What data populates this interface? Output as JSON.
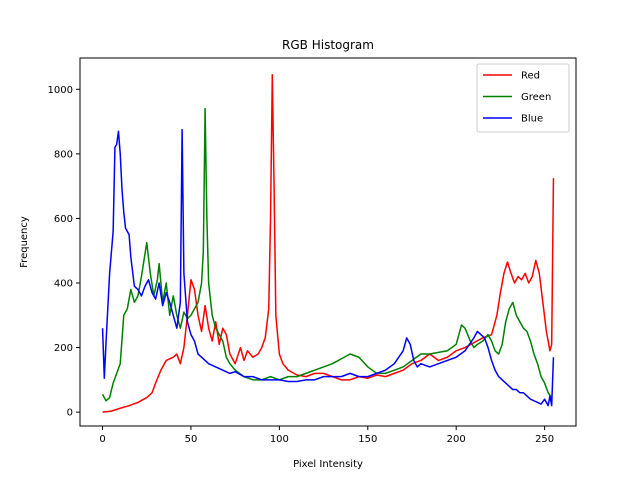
{
  "chart_data": {
    "type": "line",
    "title": "RGB Histogram",
    "xlabel": "Pixel Intensity",
    "ylabel": "Frequency",
    "xlim": [
      -12.75,
      267.75
    ],
    "ylim": [
      -43,
      1097
    ],
    "xticks": [
      0,
      50,
      100,
      150,
      200,
      250
    ],
    "yticks": [
      0,
      200,
      400,
      600,
      800,
      1000
    ],
    "grid": false,
    "legend": "upper-right",
    "series": [
      {
        "name": "Red",
        "color": "#ff0000",
        "points": [
          [
            0,
            0
          ],
          [
            5,
            3
          ],
          [
            10,
            12
          ],
          [
            15,
            20
          ],
          [
            20,
            30
          ],
          [
            25,
            45
          ],
          [
            28,
            60
          ],
          [
            30,
            90
          ],
          [
            33,
            130
          ],
          [
            36,
            160
          ],
          [
            40,
            170
          ],
          [
            42,
            180
          ],
          [
            44,
            150
          ],
          [
            46,
            200
          ],
          [
            48,
            300
          ],
          [
            50,
            410
          ],
          [
            52,
            380
          ],
          [
            54,
            300
          ],
          [
            56,
            250
          ],
          [
            58,
            330
          ],
          [
            60,
            260
          ],
          [
            62,
            220
          ],
          [
            64,
            280
          ],
          [
            66,
            210
          ],
          [
            68,
            260
          ],
          [
            70,
            240
          ],
          [
            72,
            180
          ],
          [
            75,
            150
          ],
          [
            78,
            200
          ],
          [
            80,
            160
          ],
          [
            82,
            190
          ],
          [
            85,
            170
          ],
          [
            88,
            180
          ],
          [
            90,
            200
          ],
          [
            92,
            230
          ],
          [
            94,
            320
          ],
          [
            95,
            600
          ],
          [
            96,
            1045
          ],
          [
            97,
            700
          ],
          [
            98,
            300
          ],
          [
            100,
            180
          ],
          [
            102,
            150
          ],
          [
            105,
            130
          ],
          [
            110,
            115
          ],
          [
            115,
            110
          ],
          [
            120,
            120
          ],
          [
            125,
            120
          ],
          [
            130,
            110
          ],
          [
            135,
            100
          ],
          [
            140,
            100
          ],
          [
            145,
            110
          ],
          [
            150,
            105
          ],
          [
            155,
            115
          ],
          [
            160,
            110
          ],
          [
            165,
            120
          ],
          [
            170,
            130
          ],
          [
            175,
            150
          ],
          [
            180,
            160
          ],
          [
            185,
            180
          ],
          [
            190,
            160
          ],
          [
            195,
            170
          ],
          [
            200,
            190
          ],
          [
            205,
            200
          ],
          [
            210,
            215
          ],
          [
            215,
            230
          ],
          [
            220,
            240
          ],
          [
            223,
            300
          ],
          [
            225,
            370
          ],
          [
            227,
            430
          ],
          [
            229,
            465
          ],
          [
            231,
            430
          ],
          [
            233,
            400
          ],
          [
            235,
            420
          ],
          [
            237,
            410
          ],
          [
            239,
            430
          ],
          [
            241,
            400
          ],
          [
            243,
            420
          ],
          [
            245,
            470
          ],
          [
            247,
            430
          ],
          [
            249,
            340
          ],
          [
            251,
            250
          ],
          [
            253,
            190
          ],
          [
            254,
            210
          ],
          [
            255,
            725
          ]
        ]
      },
      {
        "name": "Green",
        "color": "#008000",
        "points": [
          [
            0,
            55
          ],
          [
            2,
            35
          ],
          [
            4,
            45
          ],
          [
            6,
            90
          ],
          [
            8,
            120
          ],
          [
            10,
            150
          ],
          [
            12,
            300
          ],
          [
            14,
            320
          ],
          [
            16,
            380
          ],
          [
            18,
            340
          ],
          [
            20,
            360
          ],
          [
            22,
            420
          ],
          [
            24,
            490
          ],
          [
            25,
            525
          ],
          [
            27,
            430
          ],
          [
            29,
            360
          ],
          [
            31,
            410
          ],
          [
            32,
            460
          ],
          [
            34,
            340
          ],
          [
            36,
            400
          ],
          [
            38,
            300
          ],
          [
            40,
            360
          ],
          [
            42,
            300
          ],
          [
            44,
            260
          ],
          [
            46,
            310
          ],
          [
            48,
            290
          ],
          [
            50,
            300
          ],
          [
            52,
            320
          ],
          [
            54,
            340
          ],
          [
            56,
            400
          ],
          [
            57,
            500
          ],
          [
            58,
            940
          ],
          [
            59,
            600
          ],
          [
            60,
            400
          ],
          [
            62,
            300
          ],
          [
            64,
            260
          ],
          [
            66,
            240
          ],
          [
            68,
            220
          ],
          [
            70,
            170
          ],
          [
            72,
            150
          ],
          [
            75,
            130
          ],
          [
            80,
            110
          ],
          [
            85,
            100
          ],
          [
            90,
            100
          ],
          [
            95,
            110
          ],
          [
            100,
            100
          ],
          [
            105,
            110
          ],
          [
            110,
            110
          ],
          [
            115,
            120
          ],
          [
            120,
            130
          ],
          [
            125,
            140
          ],
          [
            130,
            150
          ],
          [
            135,
            165
          ],
          [
            140,
            180
          ],
          [
            145,
            170
          ],
          [
            150,
            140
          ],
          [
            155,
            120
          ],
          [
            160,
            120
          ],
          [
            165,
            130
          ],
          [
            170,
            140
          ],
          [
            175,
            160
          ],
          [
            180,
            180
          ],
          [
            185,
            180
          ],
          [
            190,
            185
          ],
          [
            195,
            190
          ],
          [
            200,
            210
          ],
          [
            203,
            270
          ],
          [
            205,
            260
          ],
          [
            208,
            220
          ],
          [
            210,
            200
          ],
          [
            212,
            210
          ],
          [
            215,
            220
          ],
          [
            218,
            240
          ],
          [
            220,
            220
          ],
          [
            222,
            190
          ],
          [
            224,
            180
          ],
          [
            226,
            210
          ],
          [
            228,
            280
          ],
          [
            230,
            320
          ],
          [
            232,
            340
          ],
          [
            234,
            300
          ],
          [
            236,
            280
          ],
          [
            238,
            260
          ],
          [
            240,
            250
          ],
          [
            242,
            220
          ],
          [
            244,
            180
          ],
          [
            246,
            150
          ],
          [
            248,
            110
          ],
          [
            250,
            90
          ],
          [
            252,
            60
          ],
          [
            254,
            45
          ]
        ]
      },
      {
        "name": "Blue",
        "color": "#0000ff",
        "points": [
          [
            0,
            260
          ],
          [
            1,
            105
          ],
          [
            2,
            220
          ],
          [
            4,
            430
          ],
          [
            6,
            560
          ],
          [
            7,
            820
          ],
          [
            8,
            830
          ],
          [
            9,
            870
          ],
          [
            10,
            800
          ],
          [
            11,
            690
          ],
          [
            12,
            620
          ],
          [
            13,
            570
          ],
          [
            14,
            560
          ],
          [
            15,
            550
          ],
          [
            16,
            480
          ],
          [
            18,
            390
          ],
          [
            20,
            380
          ],
          [
            22,
            360
          ],
          [
            24,
            390
          ],
          [
            26,
            410
          ],
          [
            28,
            370
          ],
          [
            30,
            350
          ],
          [
            32,
            400
          ],
          [
            34,
            330
          ],
          [
            36,
            370
          ],
          [
            38,
            340
          ],
          [
            40,
            300
          ],
          [
            42,
            260
          ],
          [
            44,
            340
          ],
          [
            45,
            875
          ],
          [
            46,
            430
          ],
          [
            48,
            280
          ],
          [
            50,
            240
          ],
          [
            52,
            220
          ],
          [
            54,
            180
          ],
          [
            56,
            170
          ],
          [
            58,
            160
          ],
          [
            60,
            150
          ],
          [
            62,
            145
          ],
          [
            64,
            140
          ],
          [
            66,
            135
          ],
          [
            68,
            130
          ],
          [
            70,
            125
          ],
          [
            72,
            120
          ],
          [
            75,
            125
          ],
          [
            80,
            110
          ],
          [
            85,
            110
          ],
          [
            90,
            100
          ],
          [
            95,
            100
          ],
          [
            100,
            100
          ],
          [
            105,
            95
          ],
          [
            110,
            95
          ],
          [
            115,
            100
          ],
          [
            120,
            100
          ],
          [
            125,
            110
          ],
          [
            130,
            110
          ],
          [
            135,
            110
          ],
          [
            140,
            120
          ],
          [
            145,
            110
          ],
          [
            150,
            110
          ],
          [
            155,
            120
          ],
          [
            160,
            130
          ],
          [
            165,
            150
          ],
          [
            170,
            190
          ],
          [
            172,
            230
          ],
          [
            174,
            210
          ],
          [
            176,
            160
          ],
          [
            178,
            140
          ],
          [
            180,
            150
          ],
          [
            185,
            140
          ],
          [
            190,
            150
          ],
          [
            195,
            160
          ],
          [
            200,
            170
          ],
          [
            205,
            190
          ],
          [
            210,
            230
          ],
          [
            212,
            250
          ],
          [
            214,
            240
          ],
          [
            216,
            230
          ],
          [
            218,
            200
          ],
          [
            220,
            160
          ],
          [
            222,
            130
          ],
          [
            224,
            110
          ],
          [
            226,
            100
          ],
          [
            228,
            90
          ],
          [
            230,
            80
          ],
          [
            232,
            70
          ],
          [
            234,
            70
          ],
          [
            236,
            60
          ],
          [
            238,
            60
          ],
          [
            240,
            50
          ],
          [
            242,
            40
          ],
          [
            244,
            35
          ],
          [
            246,
            30
          ],
          [
            248,
            25
          ],
          [
            250,
            40
          ],
          [
            252,
            20
          ],
          [
            253,
            50
          ],
          [
            254,
            20
          ],
          [
            255,
            170
          ]
        ]
      }
    ]
  }
}
